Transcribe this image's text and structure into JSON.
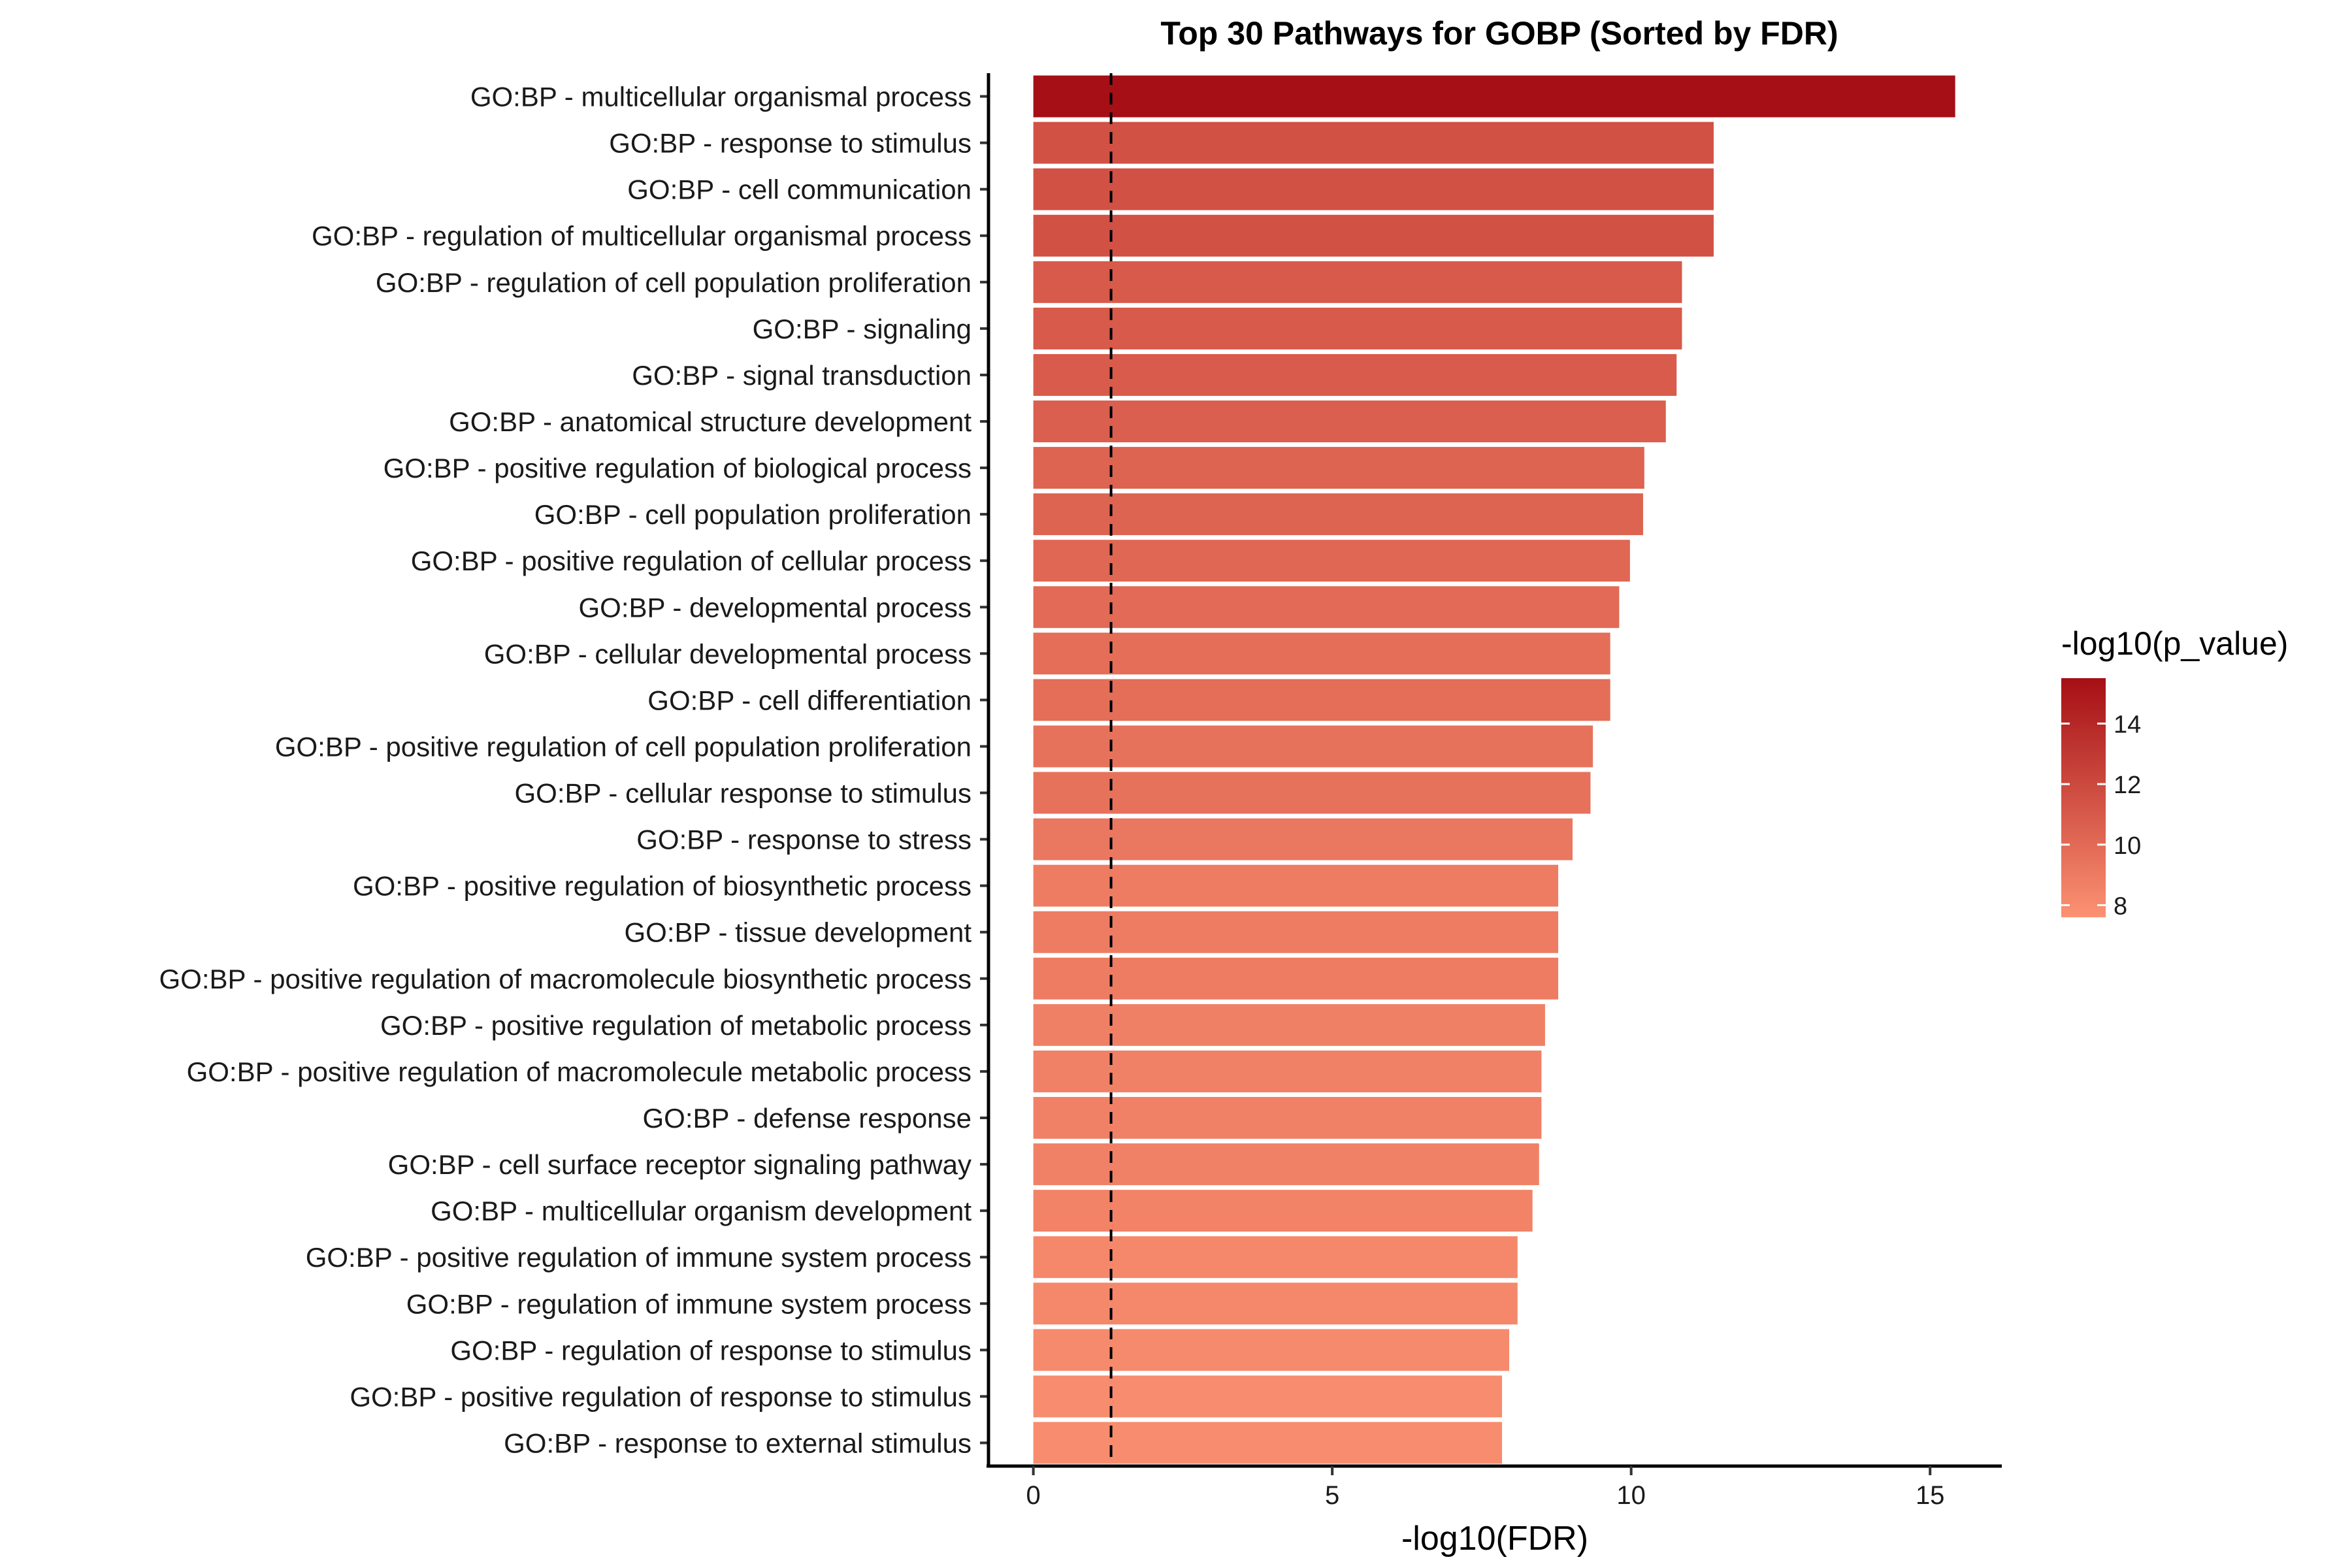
{
  "chart_data": {
    "type": "bar",
    "orientation": "horizontal",
    "title": "Top 30 Pathways for GOBP (Sorted by FDR)",
    "xlabel": "-log10(FDR)",
    "ylabel": "",
    "xlim": [
      -0.75,
      16.2
    ],
    "xticks": [
      0,
      5,
      10,
      15
    ],
    "reference_line": {
      "x": 1.3,
      "style": "dashed",
      "color": "#000000"
    },
    "grid": false,
    "legend": {
      "title": "-log10(p_value)",
      "placement": "right",
      "type": "colorbar",
      "ticks": [
        8,
        10,
        12,
        14
      ],
      "range": [
        7.6,
        15.5
      ],
      "color_low": "#FC9272",
      "color_high": "#A50F15"
    },
    "categories": [
      "GO:BP - multicellular organismal process",
      "GO:BP - response to stimulus",
      "GO:BP - cell communication",
      "GO:BP - regulation of multicellular organismal process",
      "GO:BP - regulation of cell population proliferation",
      "GO:BP - signaling",
      "GO:BP - signal transduction",
      "GO:BP - anatomical structure development",
      "GO:BP - positive regulation of biological process",
      "GO:BP - cell population proliferation",
      "GO:BP - positive regulation of cellular process",
      "GO:BP - developmental process",
      "GO:BP - cellular developmental process",
      "GO:BP - cell differentiation",
      "GO:BP - positive regulation of cell population proliferation",
      "GO:BP - cellular response to stimulus",
      "GO:BP - response to stress",
      "GO:BP - positive regulation of biosynthetic process",
      "GO:BP - tissue development",
      "GO:BP - positive regulation of macromolecule biosynthetic process",
      "GO:BP - positive regulation of metabolic process",
      "GO:BP - positive regulation of macromolecule metabolic process",
      "GO:BP - defense response",
      "GO:BP - cell surface receptor signaling pathway",
      "GO:BP - multicellular organism development",
      "GO:BP - positive regulation of immune system process",
      "GO:BP - regulation of immune system process",
      "GO:BP - regulation of response to stimulus",
      "GO:BP - positive regulation of response to stimulus",
      "GO:BP - response to external stimulus"
    ],
    "values": [
      15.42,
      11.38,
      11.38,
      11.38,
      10.85,
      10.85,
      10.76,
      10.58,
      10.22,
      10.2,
      9.98,
      9.8,
      9.65,
      9.65,
      9.36,
      9.32,
      9.02,
      8.78,
      8.78,
      8.78,
      8.56,
      8.5,
      8.5,
      8.46,
      8.35,
      8.1,
      8.1,
      7.96,
      7.84,
      7.84
    ],
    "color_values": [
      15.5,
      11.5,
      11.5,
      11.5,
      11.0,
      11.0,
      10.9,
      10.7,
      10.4,
      10.4,
      10.2,
      10.0,
      9.8,
      9.8,
      9.5,
      9.5,
      9.2,
      8.9,
      8.9,
      8.9,
      8.7,
      8.6,
      8.6,
      8.6,
      8.5,
      8.2,
      8.2,
      8.1,
      7.95,
      7.95
    ]
  }
}
